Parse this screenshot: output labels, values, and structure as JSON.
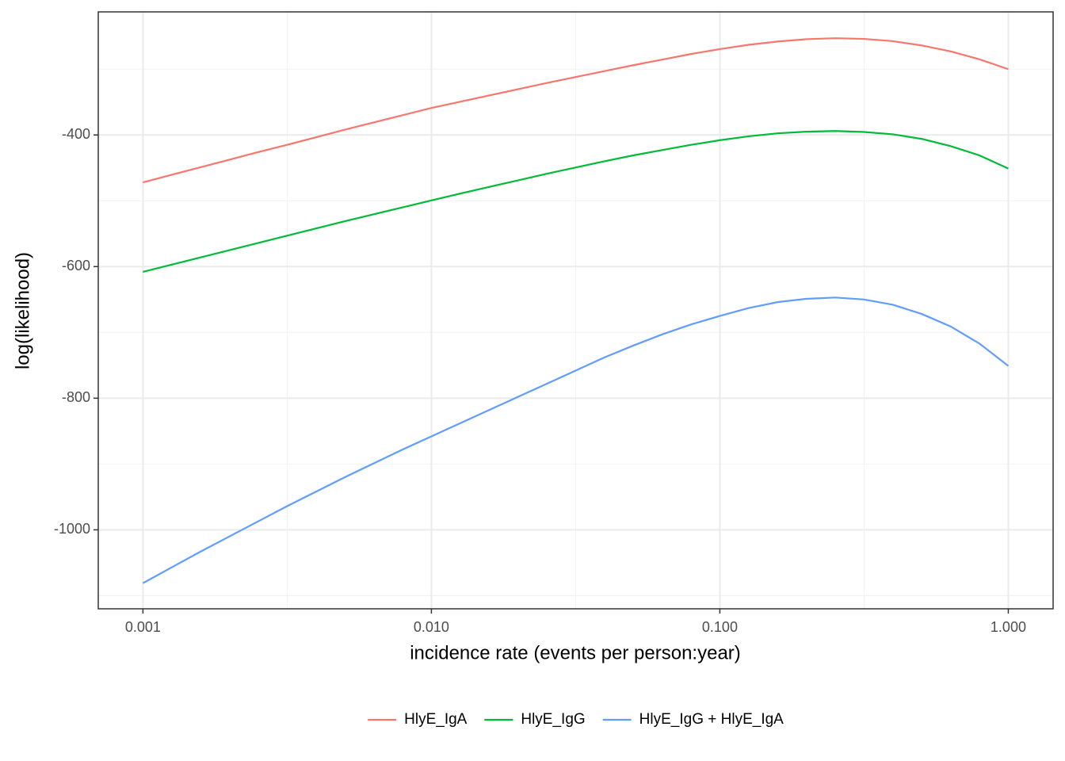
{
  "chart_data": {
    "type": "line",
    "x_label": "incidence rate (events per person:year)",
    "y_label": "log(likelihood)",
    "x": [
      0.001,
      0.001259,
      0.001585,
      0.001995,
      0.002512,
      0.003162,
      0.003981,
      0.005012,
      0.00631,
      0.007943,
      0.01,
      0.01259,
      0.01585,
      0.01995,
      0.02512,
      0.03162,
      0.03981,
      0.05012,
      0.0631,
      0.07943,
      0.1,
      0.1259,
      0.1585,
      0.1995,
      0.2512,
      0.3162,
      0.3981,
      0.5012,
      0.631,
      0.7943,
      1
    ],
    "series": [
      {
        "name": "HlyE_IgA",
        "color": "#F8766D",
        "values": [
          -472,
          -460.5,
          -449,
          -437.5,
          -426,
          -415,
          -403.5,
          -392,
          -381,
          -370,
          -359,
          -349.5,
          -340,
          -330.5,
          -321,
          -312,
          -303,
          -294,
          -285.5,
          -277,
          -269.5,
          -263,
          -258,
          -254.5,
          -253,
          -254,
          -257.5,
          -264,
          -273,
          -285,
          -300
        ]
      },
      {
        "name": "HlyE_IgG",
        "color": "#00BA38",
        "values": [
          -608,
          -597,
          -586,
          -575,
          -564,
          -553,
          -542,
          -531,
          -520.5,
          -510,
          -499.5,
          -489,
          -479,
          -469,
          -459,
          -449.5,
          -440,
          -431,
          -423,
          -415,
          -408,
          -402,
          -397.5,
          -395,
          -394,
          -395.5,
          -399,
          -406,
          -417,
          -431,
          -451
        ]
      },
      {
        "name": "HlyE_IgG + HlyE_IgA",
        "color": "#619CFF",
        "values": [
          -1081,
          -1057,
          -1033,
          -1010,
          -987,
          -964,
          -942,
          -920,
          -899,
          -878,
          -858,
          -838,
          -818,
          -798,
          -778,
          -758,
          -738,
          -720,
          -703,
          -688,
          -675,
          -663,
          -654,
          -649,
          -647,
          -650,
          -658,
          -672,
          -691,
          -717,
          -751
        ]
      }
    ],
    "x_log": true,
    "xlim": [
      0.0007,
      1.43
    ],
    "xticks": [
      0.001,
      {
        "value": 0.01,
        "label": "0.010"
      },
      {
        "value": 0.1,
        "label": "0.100"
      },
      {
        "value": 1,
        "label": "1.000"
      }
    ],
    "ylim": [
      -1120,
      -213
    ],
    "yticks": [
      -1000,
      -800,
      -600,
      -400
    ],
    "grid": true,
    "legend": "bottom"
  }
}
